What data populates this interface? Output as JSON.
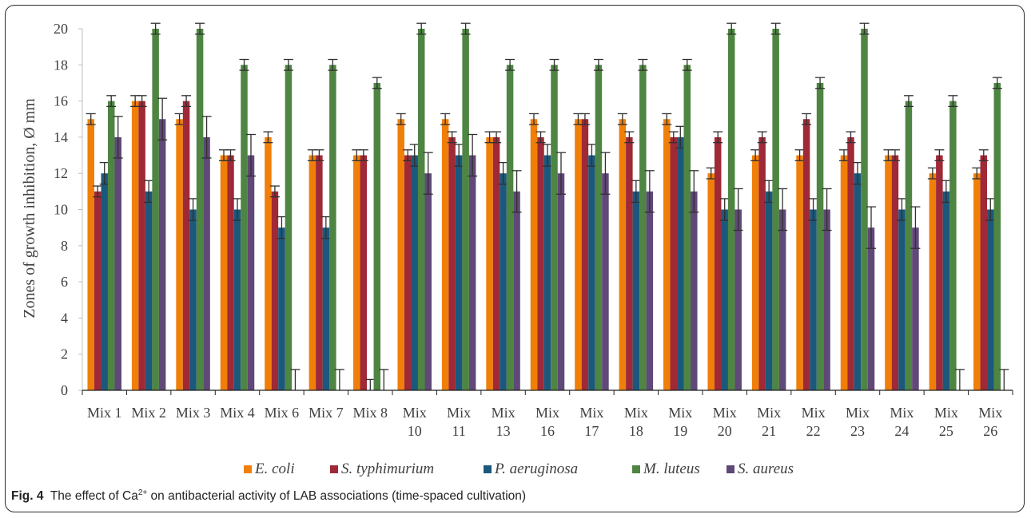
{
  "caption": {
    "fig_label": "Fig. 4",
    "text_before": "The effect of Ca",
    "superscript": "2+",
    "text_after": " on antibacterial activity of LAB associations (time-spaced cultivation)"
  },
  "chart_data": {
    "type": "bar",
    "ylabel": "Zones of growth inhibition, Ø mm",
    "xlabel": "",
    "ylim": [
      0,
      20
    ],
    "yticks": [
      0,
      2,
      4,
      6,
      8,
      10,
      12,
      14,
      16,
      18,
      20
    ],
    "grid": false,
    "legend_position": "bottom",
    "categories": [
      "Mix 1",
      "Mix 2",
      "Mix 3",
      "Mix 4",
      "Mix 6",
      "Mix 7",
      "Mix 8",
      "Mix 10",
      "Mix 11",
      "Mix 13",
      "Mix 16",
      "Mix 17",
      "Mix 18",
      "Mix 19",
      "Mix 20",
      "Mix 21",
      "Mix 22",
      "Mix 23",
      "Mix 24",
      "Mix 25",
      "Mix 26"
    ],
    "series": [
      {
        "name": "E. coli",
        "color": "#F07F09",
        "values": [
          15,
          16,
          15,
          13,
          14,
          13,
          13,
          15,
          15,
          14,
          15,
          15,
          15,
          15,
          12,
          13,
          13,
          13,
          13,
          12,
          12
        ],
        "errors": [
          0.3,
          0.3,
          0.3,
          0.3,
          0.3,
          0.3,
          0.3,
          0.3,
          0.3,
          0.3,
          0.3,
          0.3,
          0.3,
          0.3,
          0.3,
          0.3,
          0.3,
          0.3,
          0.3,
          0.3,
          0.3
        ]
      },
      {
        "name": "S. typhimurium",
        "color": "#9F2936",
        "values": [
          11,
          16,
          16,
          13,
          11,
          13,
          13,
          13,
          14,
          14,
          14,
          15,
          14,
          14,
          14,
          14,
          15,
          14,
          13,
          13,
          13
        ],
        "errors": [
          0.3,
          0.3,
          0.3,
          0.3,
          0.3,
          0.3,
          0.3,
          0.3,
          0.3,
          0.3,
          0.3,
          0.3,
          0.3,
          0.3,
          0.3,
          0.3,
          0.3,
          0.3,
          0.3,
          0.3,
          0.3
        ]
      },
      {
        "name": "P. aeruginosa",
        "color": "#1B587C",
        "values": [
          12,
          11,
          10,
          10,
          9,
          9,
          0,
          13,
          13,
          12,
          13,
          13,
          11,
          14,
          10,
          11,
          10,
          12,
          10,
          11,
          10
        ],
        "errors": [
          0.6,
          0.6,
          0.6,
          0.6,
          0.6,
          0.6,
          0.6,
          0.6,
          0.6,
          0.6,
          0.6,
          0.6,
          0.6,
          0.6,
          0.6,
          0.6,
          0.6,
          0.6,
          0.6,
          0.6,
          0.6
        ]
      },
      {
        "name": "M. luteus",
        "color": "#4E8542",
        "values": [
          16,
          20,
          20,
          18,
          18,
          18,
          17,
          20,
          20,
          18,
          18,
          18,
          18,
          18,
          20,
          20,
          17,
          20,
          16,
          16,
          17
        ],
        "errors": [
          0.3,
          0.3,
          0.3,
          0.3,
          0.3,
          0.3,
          0.3,
          0.3,
          0.3,
          0.3,
          0.3,
          0.3,
          0.3,
          0.3,
          0.3,
          0.3,
          0.3,
          0.3,
          0.3,
          0.3,
          0.3
        ]
      },
      {
        "name": "S. aureus",
        "color": "#604878",
        "values": [
          14,
          15,
          14,
          13,
          0,
          0,
          0,
          12,
          13,
          11,
          12,
          12,
          11,
          11,
          10,
          10,
          10,
          9,
          9,
          0,
          0
        ],
        "errors": [
          1.15,
          1.15,
          1.15,
          1.15,
          1.15,
          1.15,
          1.15,
          1.15,
          1.15,
          1.15,
          1.15,
          1.15,
          1.15,
          1.15,
          1.15,
          1.15,
          1.15,
          1.15,
          1.15,
          1.15,
          1.15
        ]
      }
    ]
  }
}
